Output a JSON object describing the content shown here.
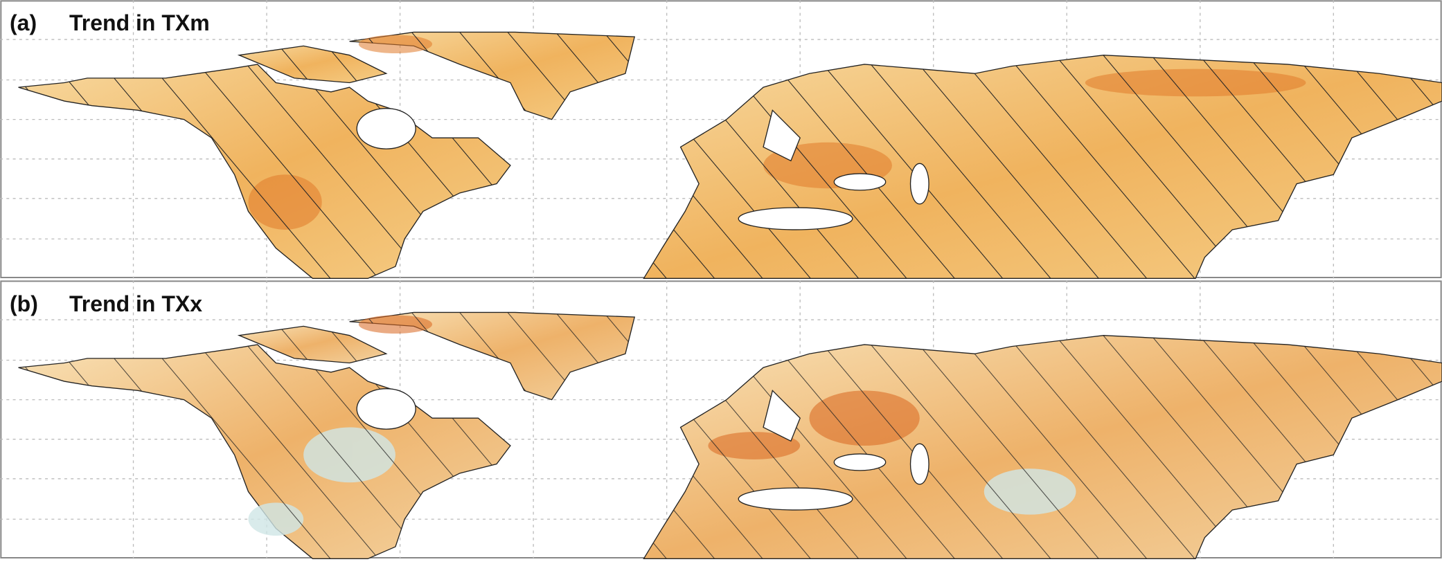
{
  "panels": [
    {
      "label": "(a)",
      "title": "Trend in TXm"
    },
    {
      "label": "(b)",
      "title": "Trend in TXx"
    }
  ]
}
